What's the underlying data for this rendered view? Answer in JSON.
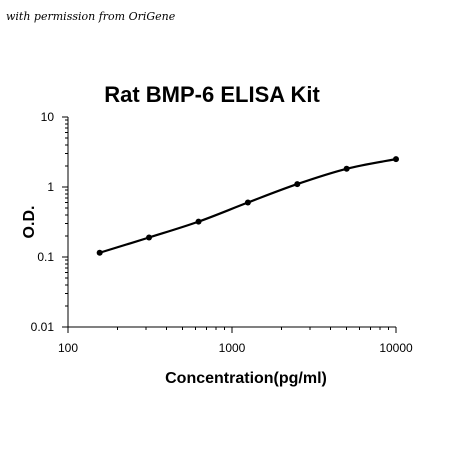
{
  "credit": "with permission from OriGene",
  "chart_data": {
    "type": "scatter",
    "title": "Rat BMP-6 ELISA Kit",
    "xlabel": "Concentration(pg/ml)",
    "ylabel": "O.D.",
    "x_scale": "log",
    "y_scale": "log",
    "xlim": [
      100,
      10000
    ],
    "ylim": [
      0.01,
      10
    ],
    "x_ticks": [
      {
        "value": 100,
        "label": "100"
      },
      {
        "value": 1000,
        "label": "1000"
      },
      {
        "value": 10000,
        "label": "10000"
      }
    ],
    "y_ticks": [
      {
        "value": 0.01,
        "label": "0.01"
      },
      {
        "value": 0.1,
        "label": "0.1"
      },
      {
        "value": 1,
        "label": "1"
      },
      {
        "value": 10,
        "label": "10"
      }
    ],
    "grid": false,
    "legend": "none",
    "series": [
      {
        "x": [
          156,
          312,
          625,
          1250,
          2500,
          5000,
          10000
        ],
        "y": [
          0.115,
          0.19,
          0.32,
          0.6,
          1.1,
          1.82,
          2.5
        ]
      }
    ],
    "colors": {
      "line": "#000000",
      "marker": "#000000"
    }
  }
}
